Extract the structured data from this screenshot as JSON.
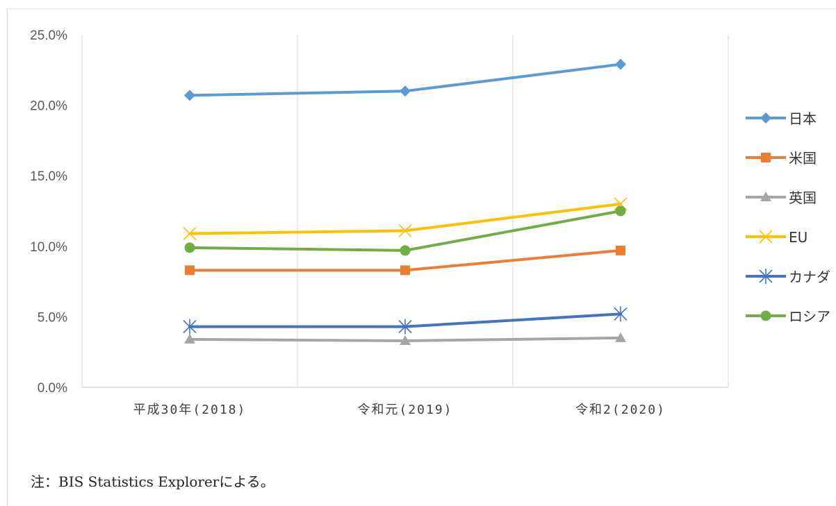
{
  "chart_data": {
    "type": "line",
    "title": "",
    "xlabel": "",
    "ylabel": "",
    "categories": [
      "平成30年(2018)",
      "令和元(2019)",
      "令和2(2020)"
    ],
    "ylim": [
      0,
      0.25
    ],
    "yticks": [
      "0.0%",
      "5.0%",
      "10.0%",
      "15.0%",
      "20.0%",
      "25.0%"
    ],
    "grid": "vertical category separators",
    "legend_position": "right",
    "series": [
      {
        "name": "日本",
        "values": [
          0.207,
          0.21,
          0.229
        ],
        "color": "#5b9bd5",
        "marker": "diamond"
      },
      {
        "name": "米国",
        "values": [
          0.083,
          0.083,
          0.097
        ],
        "color": "#ed7d31",
        "marker": "square"
      },
      {
        "name": "英国",
        "values": [
          0.034,
          0.033,
          0.035
        ],
        "color": "#a5a5a5",
        "marker": "triangle"
      },
      {
        "name": "EU",
        "values": [
          0.109,
          0.111,
          0.13
        ],
        "color": "#ffc000",
        "marker": "x"
      },
      {
        "name": "カナダ",
        "values": [
          0.043,
          0.043,
          0.052
        ],
        "color": "#4472c4",
        "marker": "star"
      },
      {
        "name": "ロシア",
        "values": [
          0.099,
          0.097,
          0.125
        ],
        "color": "#70ad47",
        "marker": "circle"
      }
    ]
  },
  "note": "注：BIS Statistics Explorerによる。"
}
